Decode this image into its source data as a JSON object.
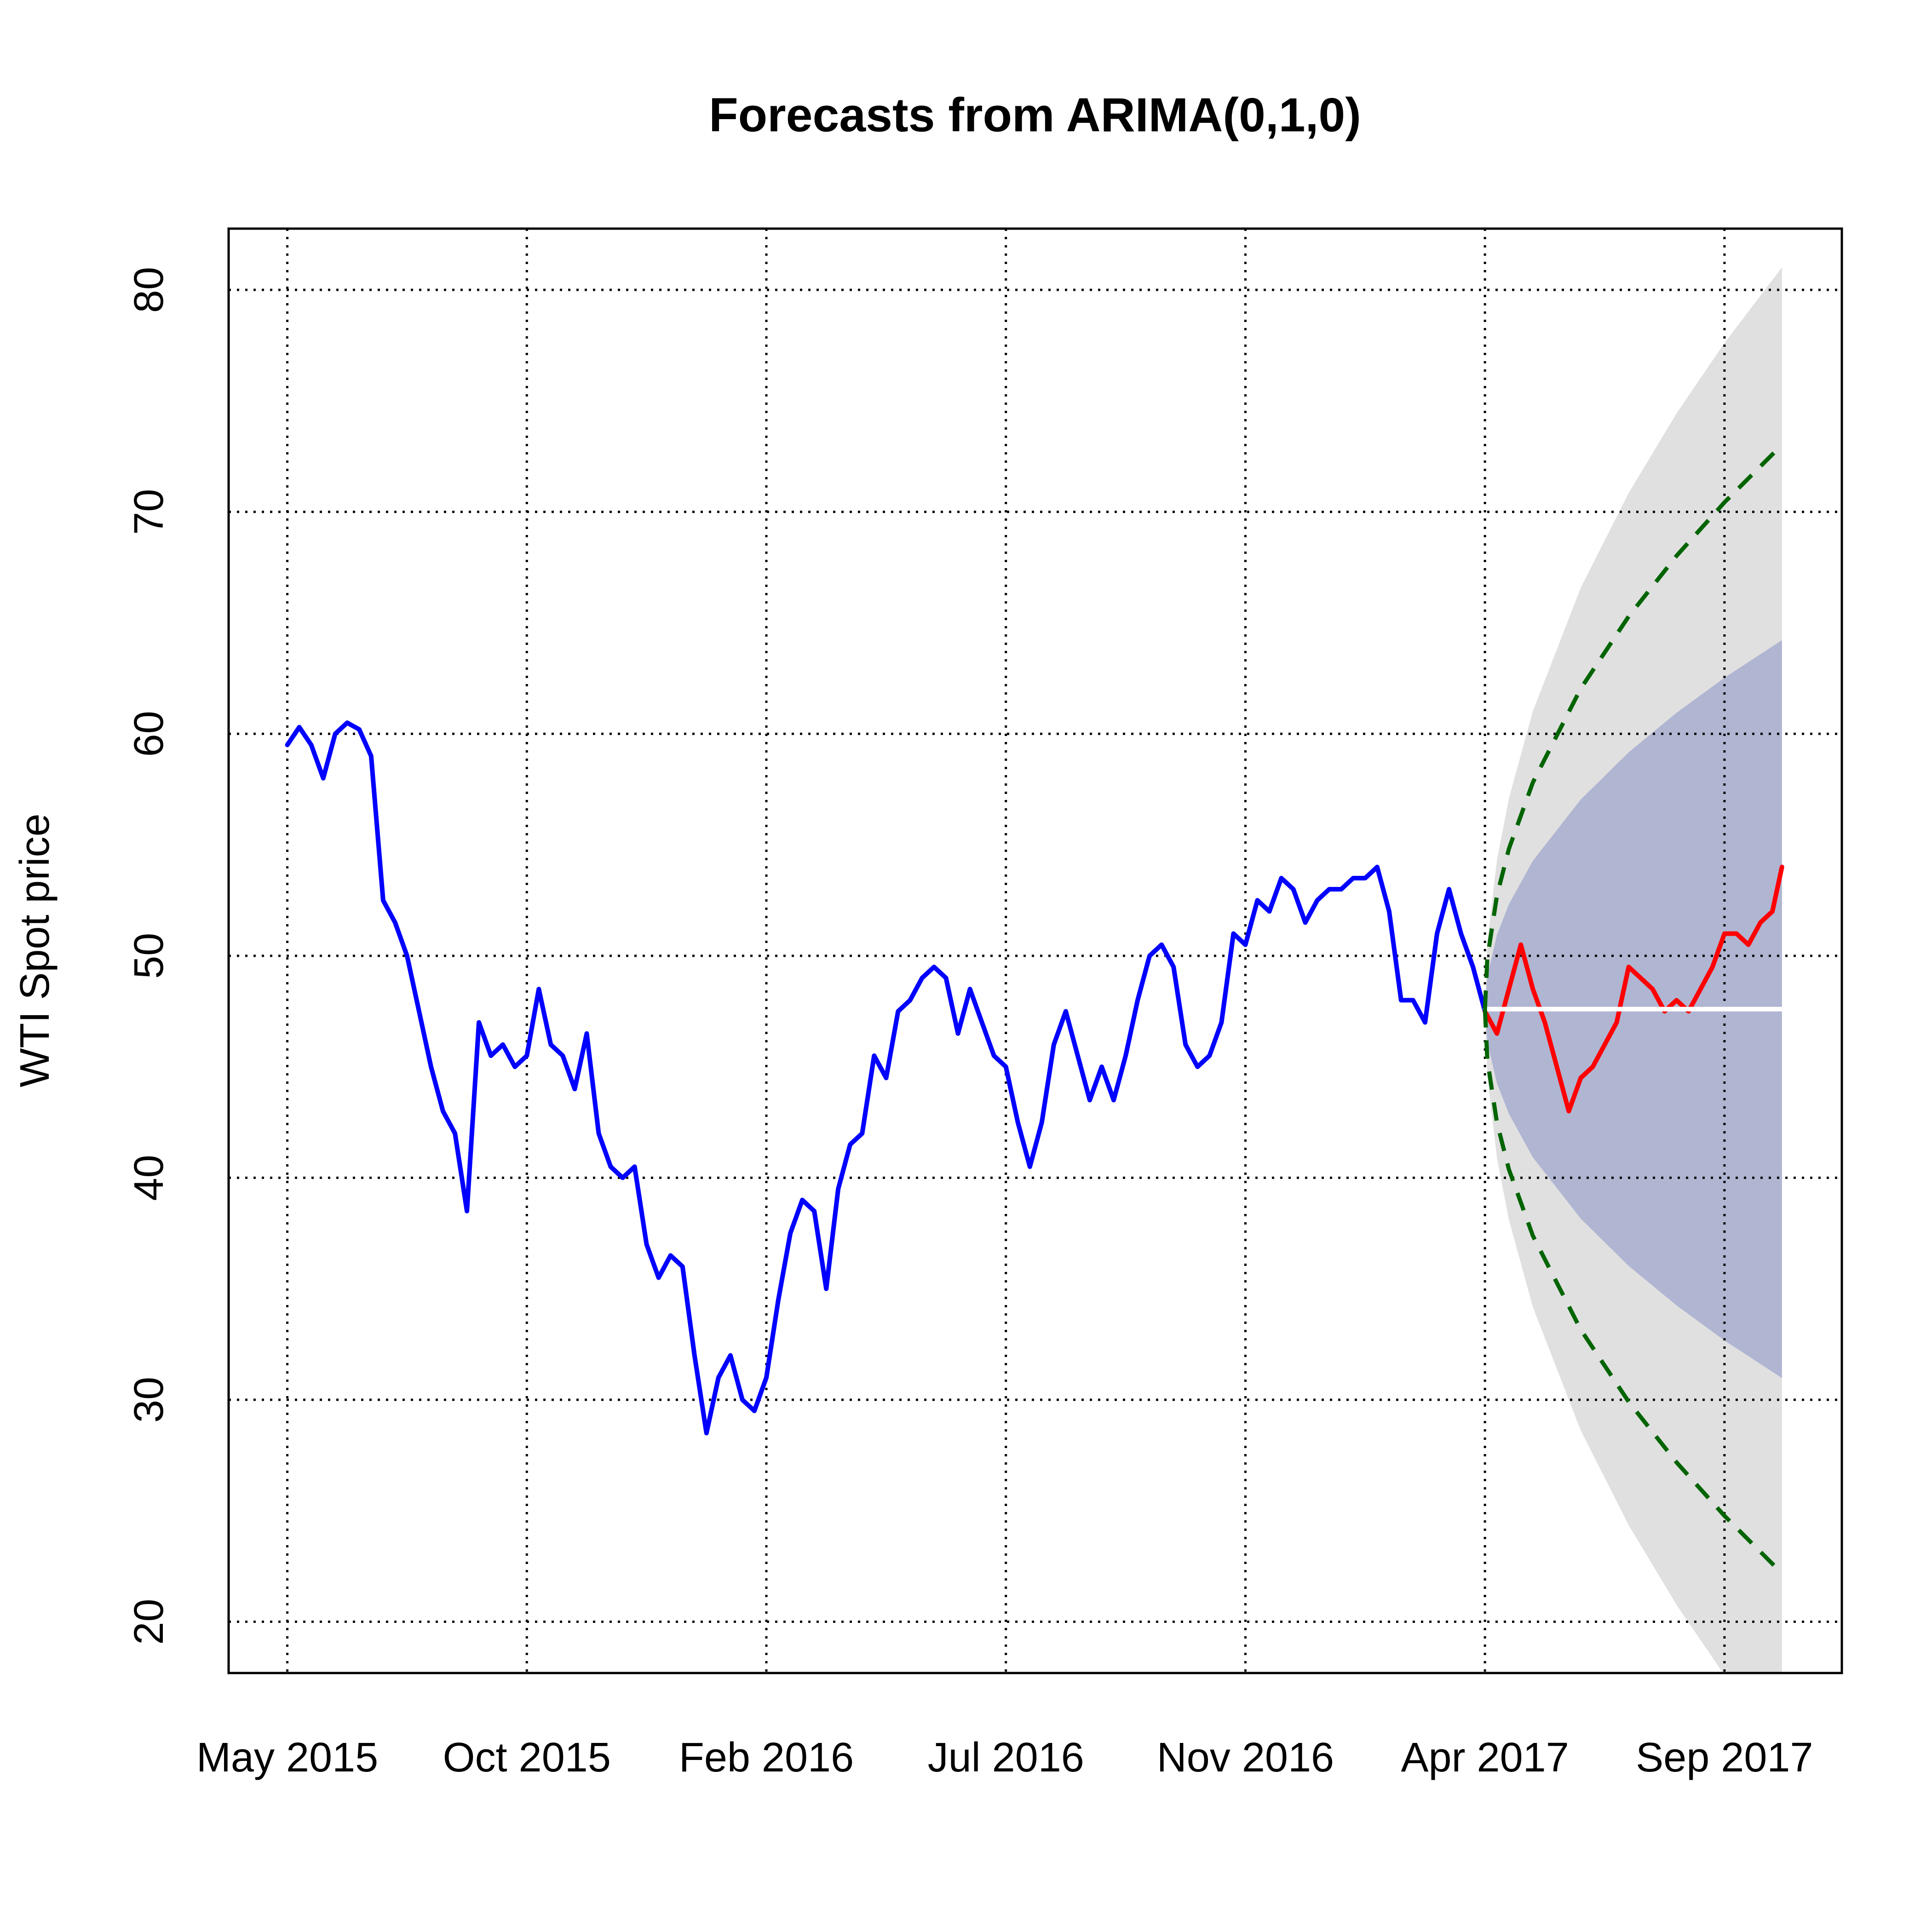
{
  "chart_data": {
    "type": "line",
    "title": "Forecasts from ARIMA(0,1,0)",
    "y_label": "WTI Spot price",
    "xlim": [
      -23.5,
      650
    ],
    "ylim": [
      17.69,
      82.76
    ],
    "xticks": [
      {
        "value": 1,
        "label": "May 2015"
      },
      {
        "value": 101,
        "label": "Oct 2015"
      },
      {
        "value": 201,
        "label": "Feb 2016"
      },
      {
        "value": 301,
        "label": "Jul 2016"
      },
      {
        "value": 401,
        "label": "Nov 2016"
      },
      {
        "value": 501,
        "label": "Apr 2017"
      },
      {
        "value": 601,
        "label": "Sep 2017"
      }
    ],
    "yticks": [
      20,
      30,
      40,
      50,
      60,
      70,
      80
    ],
    "grid": true,
    "bands": [
      {
        "color": "#e0e0e0",
        "x": [
          501,
          502,
          506,
          511,
          521,
          541,
          561,
          581,
          601,
          625
        ],
        "upper": [
          47.6,
          50.6,
          54.31,
          57.09,
          61.02,
          66.58,
          70.85,
          74.44,
          77.61,
          81.01
        ],
        "lower": [
          47.6,
          44.6,
          40.89,
          38.11,
          34.18,
          28.62,
          24.35,
          20.76,
          17.59,
          14.19
        ]
      },
      {
        "color": "#b0b5d2",
        "x": [
          501,
          502,
          506,
          511,
          521,
          541,
          561,
          581,
          601,
          625
        ],
        "upper": [
          47.6,
          49.09,
          50.94,
          52.32,
          54.28,
          57.04,
          59.17,
          60.95,
          62.53,
          64.22
        ],
        "lower": [
          47.6,
          46.11,
          44.26,
          42.88,
          40.92,
          38.16,
          36.03,
          34.25,
          32.67,
          30.98
        ]
      }
    ],
    "series": [
      {
        "color": "#0000ff",
        "x": [
          1,
          6,
          11,
          16,
          21,
          26,
          31,
          36,
          41,
          46,
          51,
          56,
          61,
          66,
          71,
          76,
          81,
          86,
          91,
          96,
          101,
          106,
          111,
          116,
          121,
          126,
          131,
          136,
          141,
          146,
          151,
          156,
          161,
          166,
          171,
          176,
          181,
          186,
          191,
          196,
          201,
          206,
          211,
          216,
          221,
          226,
          231,
          236,
          241,
          246,
          251,
          256,
          261,
          266,
          271,
          276,
          281,
          286,
          291,
          296,
          301,
          306,
          311,
          316,
          321,
          326,
          331,
          336,
          341,
          346,
          351,
          356,
          361,
          366,
          371,
          376,
          381,
          386,
          391,
          396,
          401,
          406,
          411,
          416,
          421,
          426,
          431,
          436,
          441,
          446,
          451,
          456,
          461,
          466,
          471,
          476,
          481,
          486,
          491,
          496,
          501
        ],
        "values": [
          59.5,
          60.3,
          59.5,
          58,
          60,
          60.5,
          60.2,
          59,
          52.5,
          51.5,
          50,
          47.5,
          45,
          43,
          42,
          38.5,
          47,
          45.5,
          46,
          45,
          45.5,
          48.5,
          46,
          45.5,
          44,
          46.5,
          42,
          40.5,
          40,
          40.5,
          37,
          35.5,
          36.5,
          36,
          32,
          28.5,
          31,
          32,
          30,
          29.5,
          31,
          34.5,
          37.5,
          39,
          38.5,
          35,
          39.5,
          41.5,
          42,
          45.5,
          44.5,
          47.5,
          48,
          49,
          49.5,
          49,
          46.5,
          48.5,
          47,
          45.5,
          45,
          42.5,
          40.5,
          42.5,
          46,
          47.5,
          45.5,
          43.5,
          45,
          43.5,
          45.5,
          48,
          50,
          50.5,
          49.5,
          46,
          45,
          45.5,
          47,
          51,
          50.5,
          52.5,
          52,
          53.5,
          53,
          51.5,
          52.5,
          53,
          53,
          53.5,
          53.5,
          54,
          52,
          48,
          48,
          47,
          51,
          53,
          51,
          49.5,
          47.5
        ]
      },
      {
        "color": "#ff0000",
        "x": [
          501,
          506,
          511,
          516,
          521,
          526,
          531,
          536,
          541,
          546,
          551,
          556,
          561,
          566,
          571,
          576,
          581,
          586,
          591,
          596,
          601,
          606,
          611,
          616,
          621,
          625
        ],
        "values": [
          47.5,
          46.5,
          48.5,
          50.5,
          48.5,
          47,
          45,
          43,
          44.5,
          45,
          46,
          47,
          49.5,
          49,
          48.5,
          47.5,
          48,
          47.5,
          48.5,
          49.5,
          51,
          51,
          50.5,
          51.5,
          52,
          54
        ]
      },
      {
        "color": "#ffffff",
        "x": [
          501,
          625
        ],
        "values": [
          47.6,
          47.6
        ]
      },
      {
        "color": "#006400",
        "dashed": true,
        "x": [
          501,
          502,
          506,
          511,
          521,
          541,
          561,
          581,
          601,
          625
        ],
        "values": [
          47.6,
          49.88,
          52.71,
          54.82,
          57.81,
          62.04,
          65.29,
          68.02,
          70.43,
          73.02
        ]
      },
      {
        "color": "#006400",
        "dashed": true,
        "x": [
          501,
          502,
          506,
          511,
          521,
          541,
          561,
          581,
          601,
          625
        ],
        "values": [
          47.6,
          45.32,
          42.49,
          40.38,
          37.39,
          33.16,
          29.91,
          27.18,
          24.77,
          22.18
        ]
      }
    ]
  }
}
